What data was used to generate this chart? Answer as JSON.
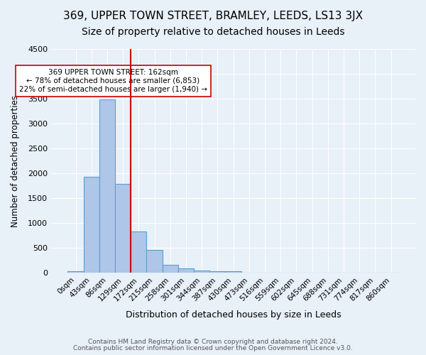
{
  "title1": "369, UPPER TOWN STREET, BRAMLEY, LEEDS, LS13 3JX",
  "title2": "Size of property relative to detached houses in Leeds",
  "xlabel": "Distribution of detached houses by size in Leeds",
  "ylabel": "Number of detached properties",
  "footnote1": "Contains HM Land Registry data © Crown copyright and database right 2024.",
  "footnote2": "Contains public sector information licensed under the Open Government Licence v3.0.",
  "bin_labels": [
    "0sqm",
    "43sqm",
    "86sqm",
    "129sqm",
    "172sqm",
    "215sqm",
    "258sqm",
    "301sqm",
    "344sqm",
    "387sqm",
    "430sqm",
    "473sqm",
    "516sqm",
    "559sqm",
    "602sqm",
    "645sqm",
    "688sqm",
    "731sqm",
    "774sqm",
    "817sqm",
    "860sqm"
  ],
  "bar_values": [
    30,
    1930,
    3480,
    1790,
    830,
    455,
    160,
    85,
    45,
    25,
    30,
    0,
    0,
    0,
    0,
    0,
    0,
    0,
    0,
    0,
    0
  ],
  "bar_color": "#aec6e8",
  "bar_edge_color": "#5a9fd4",
  "redline_x": 3.5,
  "redline_color": "#cc0000",
  "annotation_line1": "369 UPPER TOWN STREET: 162sqm",
  "annotation_line2": "← 78% of detached houses are smaller (6,853)",
  "annotation_line3": "22% of semi-detached houses are larger (1,940) →",
  "annotation_box_color": "#ffffff",
  "annotation_box_edge": "#cc0000",
  "ylim": [
    0,
    4500
  ],
  "yticks": [
    0,
    500,
    1000,
    1500,
    2000,
    2500,
    3000,
    3500,
    4000,
    4500
  ],
  "bg_color": "#e8f0f8",
  "grid_color": "#ffffff",
  "title1_fontsize": 11,
  "title2_fontsize": 10
}
